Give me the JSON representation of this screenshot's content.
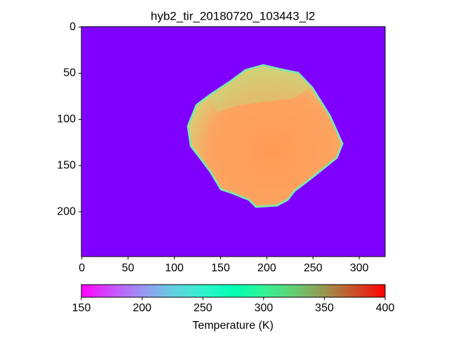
{
  "chart_data": {
    "type": "image",
    "title": "hyb2_tir_20180720_103443_l2",
    "xlim": [
      -0.5,
      328
    ],
    "xticks": [
      0,
      50,
      100,
      150,
      200,
      250,
      300
    ],
    "ylim": [
      248.5,
      -0.5
    ],
    "yticks": [
      0,
      50,
      100,
      150,
      200
    ],
    "colormap": "rainbow",
    "colorbar": {
      "label": "Temperature (K)",
      "lim": [
        150,
        400
      ],
      "ticks": [
        150,
        200,
        250,
        300,
        350,
        400
      ]
    }
  }
}
